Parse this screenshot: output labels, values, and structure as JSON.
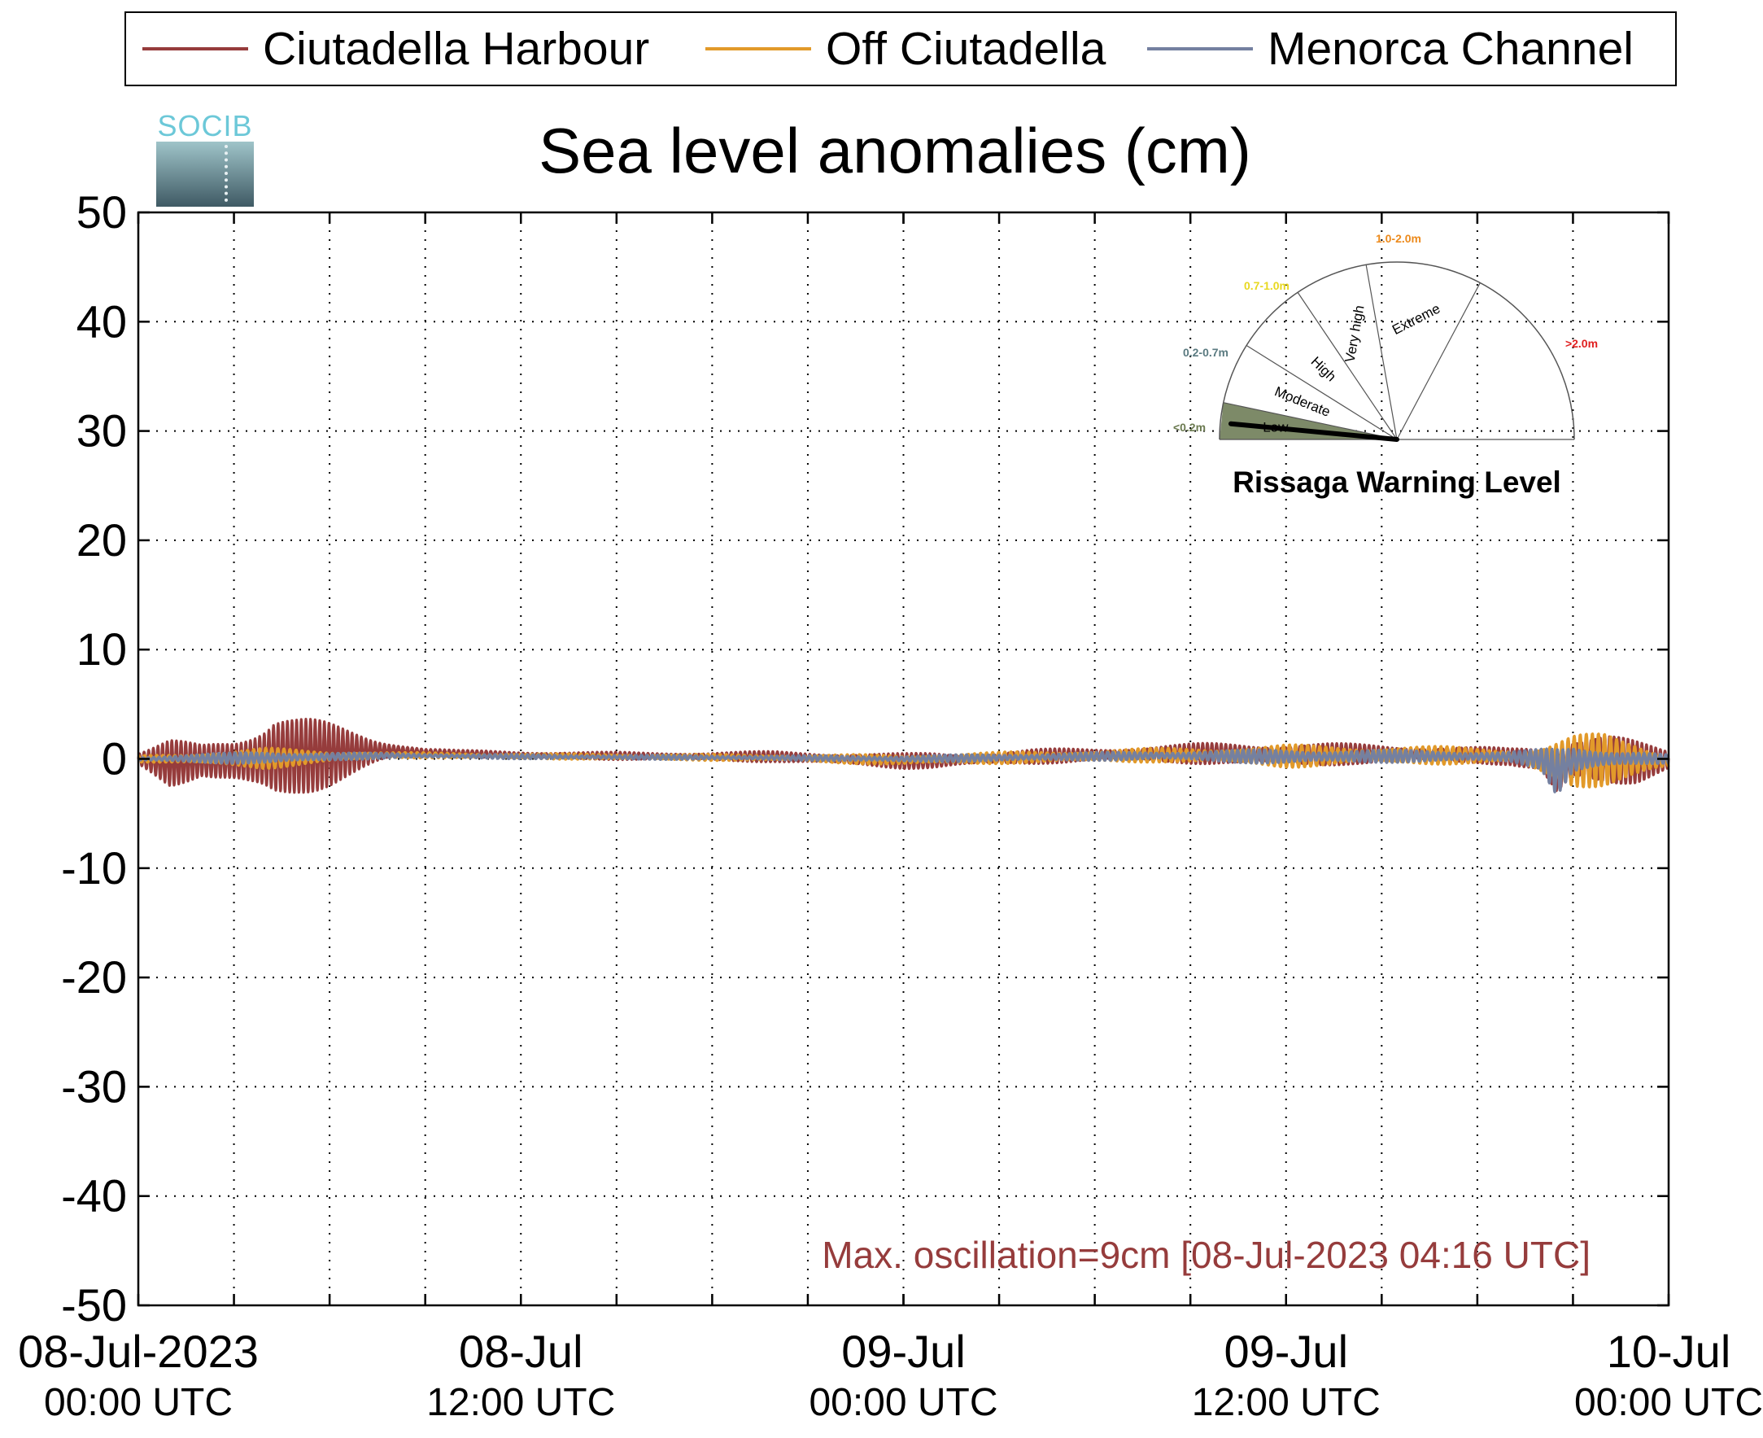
{
  "chart_data": {
    "type": "line",
    "title": "Sea level anomalies (cm)",
    "xlabel": "",
    "ylabel": "",
    "ylim": [
      -50,
      50
    ],
    "yticks": [
      -50,
      -40,
      -30,
      -20,
      -10,
      0,
      10,
      20,
      30,
      40,
      50
    ],
    "ytick_labels": [
      "-50",
      "-40",
      "-30",
      "-20",
      "-10",
      "0",
      "10",
      "20",
      "30",
      "40",
      "50"
    ],
    "xlim_hours": [
      0,
      48
    ],
    "x_tick_hours": [
      0,
      12,
      24,
      36,
      48
    ],
    "x_tick_labels": [
      {
        "date": "08-Jul-2023",
        "time": "00:00 UTC"
      },
      {
        "date": "08-Jul",
        "time": "12:00 UTC"
      },
      {
        "date": "09-Jul",
        "time": "00:00 UTC"
      },
      {
        "date": "09-Jul",
        "time": "12:00 UTC"
      },
      {
        "date": "10-Jul",
        "time": "00:00 UTC"
      }
    ],
    "x_grid_hours": [
      3,
      6,
      9,
      12,
      15,
      18,
      21,
      24,
      27,
      30,
      33,
      36,
      39,
      42,
      45
    ],
    "grid": true,
    "legend_position": "top",
    "series": [
      {
        "name": "Ciutadella Harbour",
        "color": "#963c3c",
        "envelope": {
          "x": [
            0,
            1,
            2,
            3,
            3.5,
            4,
            4.27,
            5,
            6,
            7,
            8,
            9,
            10,
            12,
            16,
            20,
            24,
            25,
            26,
            28,
            30,
            32,
            34,
            36,
            38,
            40,
            42,
            43,
            44,
            44.5,
            45,
            46,
            47,
            48
          ],
          "upper": [
            0.6,
            1.7,
            1.5,
            2.6,
            3.5,
            4.2,
            4.8,
            4.0,
            3.3,
            2.6,
            1.7,
            1.0,
            0.8,
            0.7,
            0.6,
            0.7,
            0.5,
            0.6,
            0.5,
            0.9,
            1.0,
            1.3,
            1.5,
            1.6,
            1.4,
            1.3,
            1.1,
            1.0,
            1.3,
            1.9,
            2.7,
            2.6,
            1.6,
            0.8
          ],
          "lower": [
            -0.6,
            -2.5,
            -1.8,
            -3.0,
            -3.8,
            -4.2,
            -4.5,
            -3.5,
            -2.5,
            -1.4,
            -0.2,
            0.2,
            0.2,
            0.0,
            -0.1,
            -0.3,
            -0.9,
            -0.9,
            -0.7,
            -0.5,
            -0.2,
            -0.4,
            -0.5,
            -0.9,
            -0.5,
            -0.4,
            -0.4,
            -0.6,
            -1.4,
            -4.6,
            -2.8,
            -2.6,
            -2.2,
            -1.0
          ]
        }
      },
      {
        "name": "Off Ciutadella",
        "color": "#e29a2a",
        "envelope": {
          "x": [
            0,
            4,
            8,
            12,
            20,
            24,
            28,
            32,
            36,
            40,
            43,
            44,
            45,
            46,
            47,
            48
          ],
          "upper": [
            0.3,
            1.0,
            0.6,
            0.5,
            0.4,
            0.4,
            0.7,
            1.0,
            1.3,
            1.2,
            1.0,
            1.3,
            2.2,
            2.4,
            1.8,
            0.5
          ],
          "lower": [
            -0.3,
            -0.9,
            0.1,
            0.0,
            -0.2,
            -0.6,
            -0.4,
            -0.3,
            -0.8,
            -0.5,
            -0.5,
            -1.6,
            -2.6,
            -2.6,
            -2.0,
            -1.0
          ]
        }
      },
      {
        "name": "Menorca Channel",
        "color": "#7480a0",
        "envelope": {
          "x": [
            0,
            4,
            8,
            12,
            20,
            24,
            28,
            32,
            36,
            40,
            43,
            44,
            44.5,
            45,
            46,
            47,
            48
          ],
          "upper": [
            0.2,
            0.7,
            0.5,
            0.4,
            0.3,
            0.3,
            0.5,
            0.7,
            0.9,
            0.8,
            0.7,
            0.9,
            1.0,
            1.2,
            1.0,
            0.8,
            0.4
          ],
          "lower": [
            -0.2,
            -0.5,
            0.1,
            0.0,
            -0.1,
            -0.3,
            -0.2,
            -0.1,
            -0.5,
            -0.3,
            -0.3,
            -0.9,
            -3.5,
            -1.4,
            -1.0,
            -0.7,
            -0.4
          ]
        }
      }
    ],
    "annotation": "Max. oscillation=9cm [08-Jul-2023 04:16 UTC]",
    "annotation_color": "#963c3c"
  },
  "logo": {
    "text": "SOCIB"
  },
  "gauge": {
    "title": "Rissaga Warning Level",
    "current_level": "Low",
    "needle_value_m": 0.09,
    "sectors": [
      {
        "label": "Low",
        "range": "<0.2m",
        "range_color": "#6b7a50",
        "active": true
      },
      {
        "label": "Moderate",
        "range": "0.2-0.7m",
        "range_color": "#5a7a80",
        "active": false
      },
      {
        "label": "High",
        "range": "0.7-1.0m",
        "range_color": "#e8d820",
        "active": false
      },
      {
        "label": "Very high",
        "range": "1.0-2.0m",
        "range_color": "#ec8a1c",
        "active": false
      },
      {
        "label": "Extreme",
        "range": ">2.0m",
        "range_color": "#e02020",
        "active": false
      }
    ],
    "active_fill": "#7d8a68"
  }
}
